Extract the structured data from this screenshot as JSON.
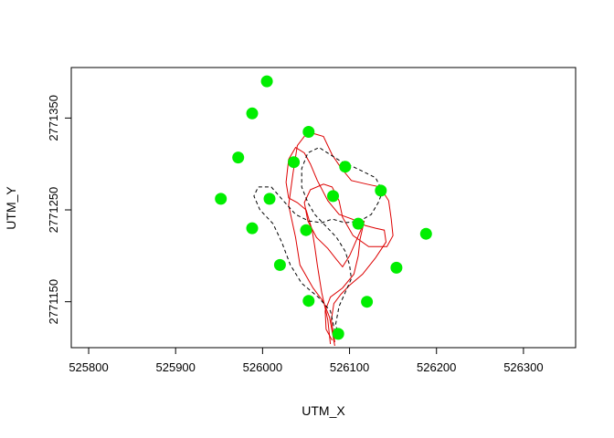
{
  "chart_data": {
    "type": "scatter",
    "title": "",
    "xlabel": "UTM_X",
    "ylabel": "UTM_Y",
    "xlim": [
      525780,
      526360
    ],
    "ylim": [
      2771100,
      2771405
    ],
    "x_ticks": [
      525800,
      525900,
      526000,
      526100,
      526200,
      526300
    ],
    "y_ticks": [
      2771150,
      2771250,
      2771350
    ],
    "x_tick_labels": [
      "525800",
      "525900",
      "526000",
      "526100",
      "526200",
      "526300"
    ],
    "y_tick_labels": [
      "2771150",
      "2771250",
      "2771350"
    ],
    "grid": false,
    "legend": "none",
    "series": [
      {
        "marker": "filled-circle",
        "color": "#00ee00",
        "points": [
          [
            526005,
            2771390
          ],
          [
            525988,
            2771355
          ],
          [
            526053,
            2771335
          ],
          [
            525972,
            2771307
          ],
          [
            526036,
            2771302
          ],
          [
            526095,
            2771297
          ],
          [
            526136,
            2771271
          ],
          [
            526081,
            2771265
          ],
          [
            526008,
            2771262
          ],
          [
            525952,
            2771262
          ],
          [
            526110,
            2771235
          ],
          [
            525988,
            2771230
          ],
          [
            526050,
            2771228
          ],
          [
            526188,
            2771224
          ],
          [
            526020,
            2771190
          ],
          [
            526154,
            2771187
          ],
          [
            526053,
            2771151
          ],
          [
            526120,
            2771150
          ],
          [
            526087,
            2771115
          ]
        ]
      },
      {
        "line": "solid",
        "color": "#dd0000",
        "points": [
          [
            526083,
            2771102
          ],
          [
            526077,
            2771133
          ],
          [
            526070,
            2771150
          ],
          [
            526058,
            2771165
          ],
          [
            526043,
            2771190
          ],
          [
            526038,
            2771220
          ],
          [
            526030,
            2771255
          ],
          [
            526035,
            2771290
          ],
          [
            526040,
            2771320
          ],
          [
            526052,
            2771335
          ],
          [
            526070,
            2771330
          ],
          [
            526080,
            2771310
          ],
          [
            526090,
            2771296
          ],
          [
            526102,
            2771282
          ],
          [
            526120,
            2771278
          ],
          [
            526135,
            2771275
          ],
          [
            526145,
            2771260
          ],
          [
            526148,
            2771240
          ],
          [
            526150,
            2771222
          ],
          [
            526143,
            2771210
          ],
          [
            526122,
            2771210
          ],
          [
            526104,
            2771222
          ],
          [
            526092,
            2771242
          ],
          [
            526088,
            2771260
          ],
          [
            526080,
            2771275
          ],
          [
            526070,
            2771278
          ],
          [
            526055,
            2771272
          ],
          [
            526048,
            2771258
          ],
          [
            526052,
            2771238
          ],
          [
            526062,
            2771220
          ],
          [
            526075,
            2771208
          ],
          [
            526085,
            2771196
          ],
          [
            526092,
            2771188
          ],
          [
            526100,
            2771200
          ],
          [
            526113,
            2771228
          ],
          [
            526117,
            2771238
          ],
          [
            526112,
            2771218
          ],
          [
            526110,
            2771200
          ],
          [
            526105,
            2771180
          ],
          [
            526092,
            2771165
          ],
          [
            526078,
            2771155
          ],
          [
            526072,
            2771140
          ],
          [
            526073,
            2771120
          ],
          [
            526080,
            2771108
          ]
        ]
      },
      {
        "line": "solid",
        "color": "#dd0000",
        "points": [
          [
            526078,
            2771104
          ],
          [
            526075,
            2771130
          ],
          [
            526068,
            2771160
          ],
          [
            526063,
            2771190
          ],
          [
            526060,
            2771210
          ],
          [
            526057,
            2771228
          ],
          [
            526050,
            2771250
          ],
          [
            526040,
            2771258
          ],
          [
            526030,
            2771263
          ],
          [
            526027,
            2771280
          ],
          [
            526030,
            2771305
          ],
          [
            526038,
            2771318
          ],
          [
            526048,
            2771312
          ],
          [
            526055,
            2771300
          ],
          [
            526063,
            2771282
          ],
          [
            526075,
            2771260
          ],
          [
            526088,
            2771245
          ],
          [
            526103,
            2771240
          ],
          [
            526118,
            2771233
          ],
          [
            526130,
            2771230
          ],
          [
            526140,
            2771228
          ],
          [
            526142,
            2771215
          ],
          [
            526130,
            2771198
          ],
          [
            526115,
            2771180
          ],
          [
            526100,
            2771168
          ],
          [
            526090,
            2771158
          ],
          [
            526082,
            2771148
          ],
          [
            526079,
            2771130
          ],
          [
            526083,
            2771106
          ]
        ]
      },
      {
        "line": "dashed",
        "color": "#000000",
        "points": [
          [
            526085,
            2771110
          ],
          [
            526078,
            2771140
          ],
          [
            526064,
            2771155
          ],
          [
            526045,
            2771170
          ],
          [
            526032,
            2771190
          ],
          [
            526022,
            2771215
          ],
          [
            526012,
            2771235
          ],
          [
            525997,
            2771250
          ],
          [
            525990,
            2771265
          ],
          [
            525995,
            2771275
          ],
          [
            526010,
            2771275
          ],
          [
            526022,
            2771262
          ],
          [
            526038,
            2771245
          ],
          [
            526053,
            2771238
          ],
          [
            526068,
            2771236
          ],
          [
            526080,
            2771240
          ],
          [
            526095,
            2771236
          ],
          [
            526112,
            2771238
          ],
          [
            526125,
            2771245
          ],
          [
            526133,
            2771258
          ],
          [
            526138,
            2771270
          ],
          [
            526130,
            2771285
          ],
          [
            526115,
            2771292
          ],
          [
            526102,
            2771298
          ],
          [
            526090,
            2771303
          ],
          [
            526078,
            2771310
          ],
          [
            526065,
            2771318
          ],
          [
            526052,
            2771312
          ],
          [
            526045,
            2771295
          ],
          [
            526045,
            2771275
          ],
          [
            526052,
            2771258
          ],
          [
            526060,
            2771245
          ],
          [
            526073,
            2771232
          ],
          [
            526085,
            2771220
          ],
          [
            526095,
            2771205
          ],
          [
            526100,
            2771190
          ],
          [
            526102,
            2771175
          ],
          [
            526095,
            2771160
          ],
          [
            526088,
            2771145
          ],
          [
            526084,
            2771125
          ],
          [
            526088,
            2771112
          ]
        ]
      }
    ]
  }
}
